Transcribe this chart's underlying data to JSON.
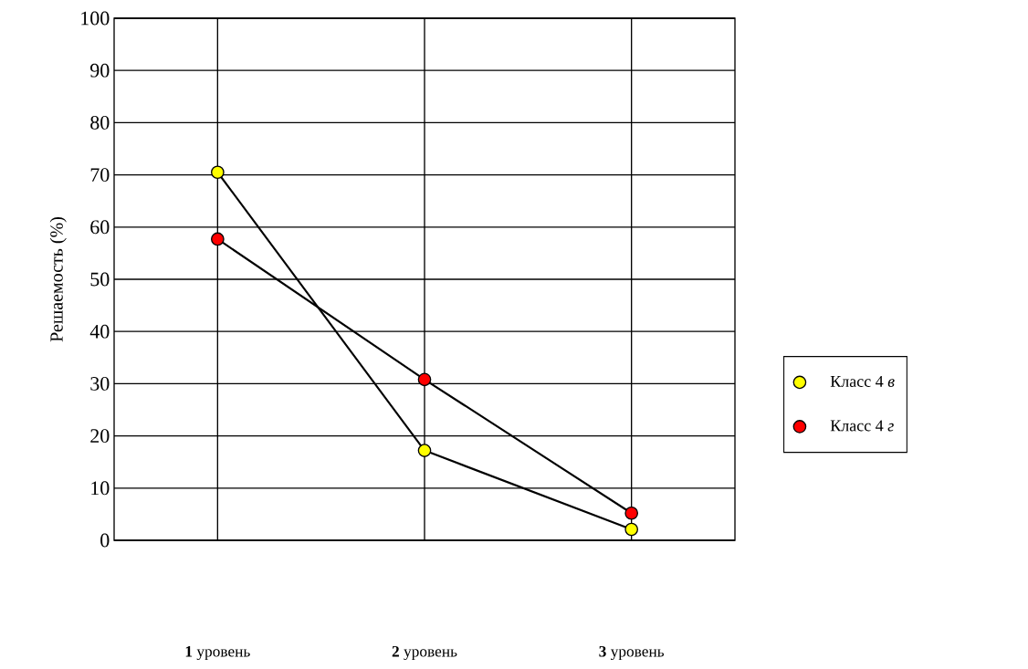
{
  "chart_data": {
    "type": "line",
    "ylabel": "Решаемость (%)",
    "categories": [
      "**1** уровень",
      "**2** уровень",
      "**3** уровень"
    ],
    "series": [
      {
        "name": "Класс 4 *в*",
        "color": "#ffff00",
        "values": [
          70.5,
          17.2,
          2.1
        ]
      },
      {
        "name": "Класс 4 *г*",
        "color": "#ff0000",
        "values": [
          57.7,
          30.8,
          5.2
        ]
      }
    ],
    "ylim": [
      0,
      100
    ],
    "yticks": [
      0,
      10,
      20,
      30,
      40,
      50,
      60,
      70,
      80,
      90,
      100
    ],
    "grid": true,
    "legend": "right",
    "marker": "circle",
    "line_style": "solid"
  }
}
